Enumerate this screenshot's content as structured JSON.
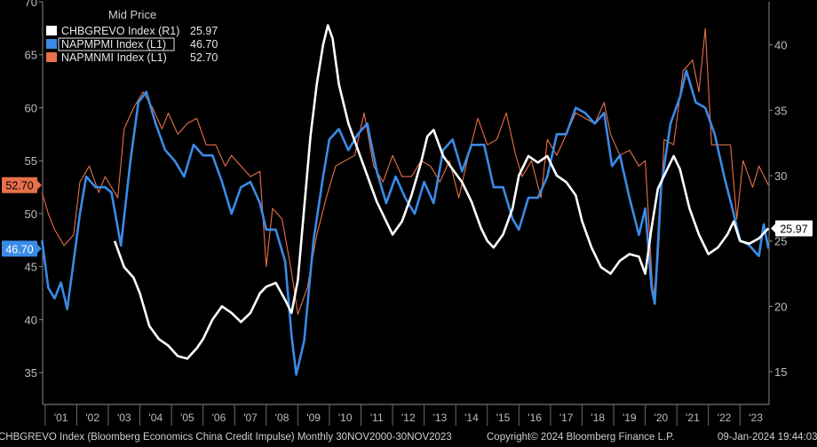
{
  "chart_data": {
    "type": "line",
    "title": "Mid Price",
    "x_range": [
      "2000-11-30",
      "2023-11-30"
    ],
    "x_tick_labels": [
      "'01",
      "'02",
      "'03",
      "'04",
      "'05",
      "'06",
      "'07",
      "'08",
      "'09",
      "'10",
      "'11",
      "'12",
      "'13",
      "'14",
      "'15",
      "'16",
      "'17",
      "'18",
      "'19",
      "'20",
      "'21",
      "'22",
      "'23"
    ],
    "y_left_range": [
      32,
      70
    ],
    "y_left_ticks": [
      35,
      40,
      45,
      50,
      55,
      60,
      65,
      70
    ],
    "y_right_range": [
      12.5,
      43.3
    ],
    "y_right_ticks": [
      15,
      20,
      25,
      30,
      35,
      40
    ],
    "grid": false,
    "legend_position": "top-left",
    "series": [
      {
        "name": "CHBGREVO Index",
        "axis": "R1",
        "last_value": "25.97",
        "color": "#ffffff",
        "points": [
          [
            2003.2,
            25.0
          ],
          [
            2003.5,
            23.0
          ],
          [
            2003.8,
            22.2
          ],
          [
            2004.0,
            21.0
          ],
          [
            2004.3,
            18.5
          ],
          [
            2004.6,
            17.5
          ],
          [
            2004.9,
            17.0
          ],
          [
            2005.2,
            16.2
          ],
          [
            2005.5,
            16.0
          ],
          [
            2005.8,
            16.8
          ],
          [
            2006.0,
            17.5
          ],
          [
            2006.3,
            19.0
          ],
          [
            2006.6,
            20.0
          ],
          [
            2006.9,
            19.5
          ],
          [
            2007.2,
            18.8
          ],
          [
            2007.5,
            19.5
          ],
          [
            2007.8,
            21.0
          ],
          [
            2008.0,
            21.5
          ],
          [
            2008.3,
            21.8
          ],
          [
            2008.6,
            20.5
          ],
          [
            2008.8,
            19.5
          ],
          [
            2009.0,
            22.0
          ],
          [
            2009.2,
            27.5
          ],
          [
            2009.4,
            33.0
          ],
          [
            2009.6,
            37.0
          ],
          [
            2009.8,
            40.0
          ],
          [
            2009.95,
            41.5
          ],
          [
            2010.1,
            40.5
          ],
          [
            2010.3,
            37.0
          ],
          [
            2010.6,
            34.0
          ],
          [
            2010.9,
            32.0
          ],
          [
            2011.2,
            30.0
          ],
          [
            2011.5,
            28.0
          ],
          [
            2011.8,
            26.5
          ],
          [
            2012.0,
            25.5
          ],
          [
            2012.3,
            26.5
          ],
          [
            2012.6,
            28.5
          ],
          [
            2012.9,
            31.0
          ],
          [
            2013.1,
            33.0
          ],
          [
            2013.3,
            33.5
          ],
          [
            2013.6,
            31.5
          ],
          [
            2013.9,
            30.5
          ],
          [
            2014.2,
            29.5
          ],
          [
            2014.5,
            28.0
          ],
          [
            2014.8,
            26.0
          ],
          [
            2015.0,
            25.0
          ],
          [
            2015.2,
            24.5
          ],
          [
            2015.5,
            25.5
          ],
          [
            2015.8,
            27.5
          ],
          [
            2016.0,
            30.0
          ],
          [
            2016.3,
            31.5
          ],
          [
            2016.6,
            31.0
          ],
          [
            2016.9,
            31.5
          ],
          [
            2017.2,
            30.0
          ],
          [
            2017.5,
            29.5
          ],
          [
            2017.8,
            28.5
          ],
          [
            2018.0,
            26.5
          ],
          [
            2018.3,
            24.5
          ],
          [
            2018.6,
            23.0
          ],
          [
            2018.9,
            22.5
          ],
          [
            2019.2,
            23.5
          ],
          [
            2019.5,
            24.0
          ],
          [
            2019.8,
            23.8
          ],
          [
            2020.0,
            22.5
          ],
          [
            2020.2,
            26.0
          ],
          [
            2020.4,
            29.0
          ],
          [
            2020.6,
            30.0
          ],
          [
            2020.9,
            31.5
          ],
          [
            2021.1,
            30.5
          ],
          [
            2021.4,
            27.5
          ],
          [
            2021.7,
            25.5
          ],
          [
            2022.0,
            24.0
          ],
          [
            2022.3,
            24.5
          ],
          [
            2022.6,
            25.5
          ],
          [
            2022.8,
            26.5
          ],
          [
            2023.0,
            25.0
          ],
          [
            2023.3,
            24.8
          ],
          [
            2023.6,
            25.2
          ],
          [
            2023.9,
            25.97
          ]
        ]
      },
      {
        "name": "NAPMPMI Index",
        "axis": "L1",
        "last_value": "46.70",
        "color": "#3a8be6",
        "points": [
          [
            2000.9,
            47.5
          ],
          [
            2001.1,
            43.0
          ],
          [
            2001.3,
            42.0
          ],
          [
            2001.5,
            43.5
          ],
          [
            2001.7,
            41.0
          ],
          [
            2001.9,
            45.5
          ],
          [
            2002.1,
            50.0
          ],
          [
            2002.3,
            53.5
          ],
          [
            2002.6,
            52.5
          ],
          [
            2002.9,
            52.5
          ],
          [
            2003.1,
            52.0
          ],
          [
            2003.4,
            47.0
          ],
          [
            2003.7,
            55.0
          ],
          [
            2003.95,
            60.5
          ],
          [
            2004.2,
            61.5
          ],
          [
            2004.5,
            58.5
          ],
          [
            2004.8,
            56.0
          ],
          [
            2005.1,
            55.0
          ],
          [
            2005.4,
            53.5
          ],
          [
            2005.7,
            56.5
          ],
          [
            2006.0,
            55.5
          ],
          [
            2006.3,
            55.5
          ],
          [
            2006.6,
            53.0
          ],
          [
            2006.9,
            50.0
          ],
          [
            2007.2,
            52.5
          ],
          [
            2007.5,
            53.0
          ],
          [
            2007.8,
            51.0
          ],
          [
            2008.0,
            48.5
          ],
          [
            2008.3,
            48.5
          ],
          [
            2008.6,
            45.5
          ],
          [
            2008.8,
            38.5
          ],
          [
            2008.95,
            34.8
          ],
          [
            2009.2,
            38.0
          ],
          [
            2009.5,
            47.5
          ],
          [
            2009.8,
            53.5
          ],
          [
            2010.0,
            57.0
          ],
          [
            2010.3,
            58.0
          ],
          [
            2010.6,
            56.0
          ],
          [
            2010.9,
            57.5
          ],
          [
            2011.2,
            58.5
          ],
          [
            2011.5,
            54.0
          ],
          [
            2011.8,
            51.0
          ],
          [
            2012.1,
            53.5
          ],
          [
            2012.4,
            51.5
          ],
          [
            2012.7,
            50.0
          ],
          [
            2013.0,
            53.0
          ],
          [
            2013.3,
            51.0
          ],
          [
            2013.6,
            56.0
          ],
          [
            2013.9,
            57.0
          ],
          [
            2014.2,
            54.0
          ],
          [
            2014.5,
            56.5
          ],
          [
            2014.9,
            56.5
          ],
          [
            2015.2,
            52.5
          ],
          [
            2015.5,
            52.5
          ],
          [
            2015.8,
            49.5
          ],
          [
            2016.0,
            48.5
          ],
          [
            2016.3,
            51.5
          ],
          [
            2016.6,
            51.5
          ],
          [
            2016.9,
            53.5
          ],
          [
            2017.2,
            57.5
          ],
          [
            2017.5,
            57.5
          ],
          [
            2017.8,
            60.0
          ],
          [
            2018.1,
            59.5
          ],
          [
            2018.4,
            58.5
          ],
          [
            2018.7,
            59.5
          ],
          [
            2018.95,
            54.5
          ],
          [
            2019.2,
            55.5
          ],
          [
            2019.5,
            51.5
          ],
          [
            2019.8,
            48.0
          ],
          [
            2020.0,
            50.5
          ],
          [
            2020.2,
            43.0
          ],
          [
            2020.3,
            41.5
          ],
          [
            2020.5,
            52.5
          ],
          [
            2020.8,
            58.5
          ],
          [
            2021.1,
            61.0
          ],
          [
            2021.3,
            63.5
          ],
          [
            2021.6,
            60.5
          ],
          [
            2021.9,
            60.0
          ],
          [
            2022.2,
            57.5
          ],
          [
            2022.5,
            53.5
          ],
          [
            2022.8,
            50.0
          ],
          [
            2023.0,
            47.5
          ],
          [
            2023.3,
            47.0
          ],
          [
            2023.6,
            46.0
          ],
          [
            2023.75,
            49.0
          ],
          [
            2023.9,
            46.7
          ]
        ]
      },
      {
        "name": "NAPMNMI Index",
        "axis": "L1",
        "last_value": "52.70",
        "color": "#e8704a",
        "points": [
          [
            2000.9,
            52.0
          ],
          [
            2001.1,
            50.0
          ],
          [
            2001.3,
            48.5
          ],
          [
            2001.6,
            47.0
          ],
          [
            2001.9,
            48.0
          ],
          [
            2002.1,
            53.0
          ],
          [
            2002.4,
            54.5
          ],
          [
            2002.7,
            52.0
          ],
          [
            2002.9,
            53.5
          ],
          [
            2003.1,
            52.5
          ],
          [
            2003.3,
            51.5
          ],
          [
            2003.5,
            58.0
          ],
          [
            2003.8,
            60.0
          ],
          [
            2004.1,
            61.5
          ],
          [
            2004.4,
            60.0
          ],
          [
            2004.7,
            58.0
          ],
          [
            2004.9,
            59.5
          ],
          [
            2005.2,
            57.5
          ],
          [
            2005.5,
            58.5
          ],
          [
            2005.8,
            59.0
          ],
          [
            2006.1,
            56.5
          ],
          [
            2006.4,
            56.5
          ],
          [
            2006.7,
            54.5
          ],
          [
            2006.9,
            55.5
          ],
          [
            2007.2,
            54.5
          ],
          [
            2007.5,
            53.5
          ],
          [
            2007.8,
            54.0
          ],
          [
            2008.0,
            45.0
          ],
          [
            2008.2,
            50.5
          ],
          [
            2008.5,
            49.5
          ],
          [
            2008.8,
            44.5
          ],
          [
            2009.0,
            40.5
          ],
          [
            2009.3,
            43.0
          ],
          [
            2009.6,
            48.0
          ],
          [
            2009.9,
            51.5
          ],
          [
            2010.2,
            54.5
          ],
          [
            2010.5,
            55.0
          ],
          [
            2010.8,
            55.5
          ],
          [
            2011.1,
            59.5
          ],
          [
            2011.4,
            54.5
          ],
          [
            2011.7,
            53.0
          ],
          [
            2012.0,
            55.5
          ],
          [
            2012.3,
            53.5
          ],
          [
            2012.6,
            53.5
          ],
          [
            2012.9,
            55.0
          ],
          [
            2013.2,
            54.5
          ],
          [
            2013.5,
            53.0
          ],
          [
            2013.8,
            55.0
          ],
          [
            2014.1,
            51.5
          ],
          [
            2014.4,
            55.5
          ],
          [
            2014.7,
            59.0
          ],
          [
            2015.0,
            56.5
          ],
          [
            2015.3,
            57.0
          ],
          [
            2015.6,
            59.5
          ],
          [
            2015.9,
            55.5
          ],
          [
            2016.1,
            53.5
          ],
          [
            2016.4,
            55.0
          ],
          [
            2016.7,
            51.5
          ],
          [
            2016.9,
            57.0
          ],
          [
            2017.2,
            55.5
          ],
          [
            2017.5,
            57.5
          ],
          [
            2017.8,
            59.5
          ],
          [
            2018.1,
            59.0
          ],
          [
            2018.4,
            58.5
          ],
          [
            2018.7,
            60.5
          ],
          [
            2018.9,
            57.5
          ],
          [
            2019.2,
            55.5
          ],
          [
            2019.5,
            56.0
          ],
          [
            2019.8,
            54.5
          ],
          [
            2020.0,
            55.0
          ],
          [
            2020.25,
            42.0
          ],
          [
            2020.4,
            45.5
          ],
          [
            2020.6,
            57.0
          ],
          [
            2020.9,
            56.5
          ],
          [
            2021.2,
            63.5
          ],
          [
            2021.5,
            64.5
          ],
          [
            2021.7,
            61.5
          ],
          [
            2021.9,
            67.5
          ],
          [
            2022.1,
            56.5
          ],
          [
            2022.4,
            56.5
          ],
          [
            2022.7,
            56.5
          ],
          [
            2022.9,
            49.5
          ],
          [
            2023.1,
            55.0
          ],
          [
            2023.4,
            52.5
          ],
          [
            2023.6,
            54.5
          ],
          [
            2023.9,
            52.7
          ]
        ]
      }
    ]
  },
  "legend": {
    "title": "Mid Price",
    "items": [
      {
        "label": "CHBGREVO Index  (R1)",
        "value": "25.97",
        "color": "#ffffff"
      },
      {
        "label": "NAPMPMI Index  (L1)",
        "value": "46.70",
        "color": "#3a8be6"
      },
      {
        "label": "NAPMNMI Index  (L1)",
        "value": "52.70",
        "color": "#e8704a"
      }
    ]
  },
  "badges": {
    "left_orange": "52.70",
    "left_blue": "46.70",
    "right_white": "25.97"
  },
  "footer": {
    "source": "CHBGREVO Index (Bloomberg Economics China Credit Impulse)  Monthly 30NOV2000-30NOV2023",
    "copyright": "Copyright© 2024 Bloomberg Finance L.P.",
    "timestamp": "09-Jan-2024 19:44:03"
  }
}
